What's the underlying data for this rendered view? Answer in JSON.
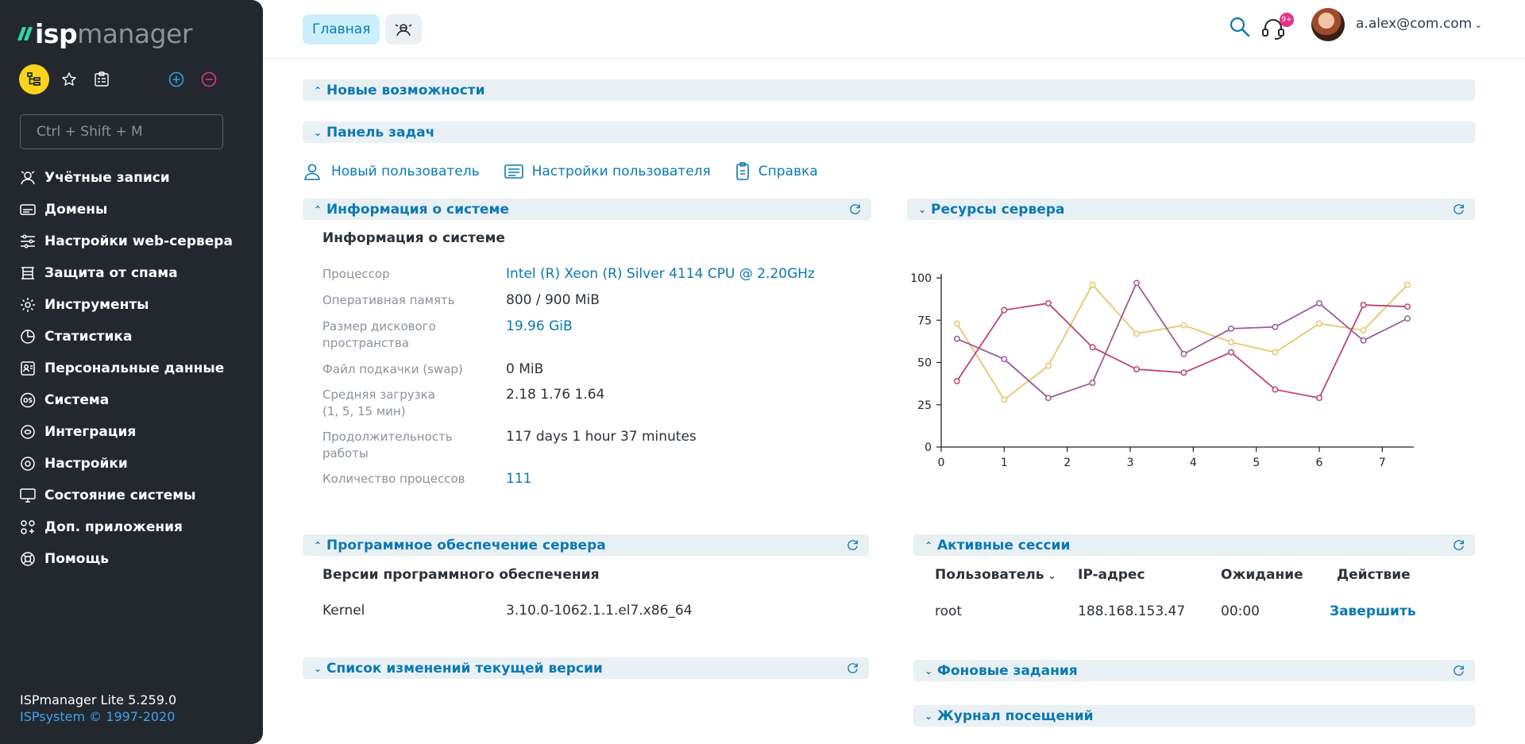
{
  "sidebar": {
    "logo": {
      "part1": "isp",
      "part2": "manager"
    },
    "search_placeholder": "Ctrl + Shift + M",
    "items": [
      {
        "label": "Учётные записи",
        "icon": "accounts-icon"
      },
      {
        "label": "Домены",
        "icon": "domains-icon"
      },
      {
        "label": "Настройки web-сервера",
        "icon": "sliders-icon"
      },
      {
        "label": "Защита от спама",
        "icon": "spam-shield-icon"
      },
      {
        "label": "Инструменты",
        "icon": "gear-icon"
      },
      {
        "label": "Статистика",
        "icon": "pie-chart-icon"
      },
      {
        "label": "Персональные данные",
        "icon": "personal-data-icon"
      },
      {
        "label": "Система",
        "icon": "os-icon"
      },
      {
        "label": "Интеграция",
        "icon": "integration-icon"
      },
      {
        "label": "Настройки",
        "icon": "settings-icon"
      },
      {
        "label": "Состояние системы",
        "icon": "monitor-icon"
      },
      {
        "label": "Доп. приложения",
        "icon": "apps-icon"
      },
      {
        "label": "Помощь",
        "icon": "lifebuoy-icon"
      }
    ],
    "footer": {
      "version": "ISPmanager Lite 5.259.0",
      "copyright": "ISPsystem © 1997-2020"
    }
  },
  "topbar": {
    "tab_main": "Главная",
    "notification_count": "9+",
    "user": "a.alex@com.com"
  },
  "sections": {
    "new_features": "Новые возможности",
    "taskbar": "Панель задач",
    "system_info": "Информация о системе",
    "server_resources": "Ресурсы сервера",
    "server_software": "Программное обеспечение сервера",
    "active_sessions": "Активные сессии",
    "changelog": "Список изменений текущей версии",
    "background_tasks": "Фоновые задания",
    "visit_log": "Журнал посещений"
  },
  "tasks": [
    {
      "label": "Новый пользователь",
      "icon": "new-user-icon"
    },
    {
      "label": "Настройки пользователя",
      "icon": "user-settings-icon"
    },
    {
      "label": "Справка",
      "icon": "help-doc-icon"
    }
  ],
  "system_info": {
    "title": "Информация о системе",
    "rows": [
      {
        "k1": "Процессор",
        "k2": "",
        "v": "Intel (R) Xeon (R) Silver 4114 CPU @ 2.20GHz",
        "link": true
      },
      {
        "k1": "Оперативная память",
        "k2": "",
        "v": "800 / 900 MiB",
        "link": false
      },
      {
        "k1": "Размер дискового",
        "k2": "пространства",
        "v": "19.96 GiB",
        "link": true
      },
      {
        "k1": "Файл подкачки (swap)",
        "k2": "",
        "v": "0 MiB",
        "link": false
      },
      {
        "k1": "Средняя загрузка",
        "k2": "(1, 5, 15 мин)",
        "v": "2.18 1.76 1.64",
        "link": false
      },
      {
        "k1": "Продолжительность",
        "k2": "работы",
        "v": "117 days 1 hour 37 minutes",
        "link": false
      },
      {
        "k1": "Количество процессов",
        "k2": "",
        "v": "111",
        "link": true
      }
    ]
  },
  "software": {
    "title": "Версии программного обеспечения",
    "rows": [
      {
        "name": "Kernel",
        "version": "3.10.0-1062.1.1.el7.x86_64"
      }
    ]
  },
  "sessions": {
    "headers": {
      "user": "Пользователь",
      "ip": "IP-адрес",
      "wait": "Ожидание",
      "action": "Действие"
    },
    "rows": [
      {
        "user": "root",
        "ip": "188.168.153.47",
        "wait": "00:00",
        "action": "Завершить"
      }
    ]
  },
  "chart_data": {
    "type": "line",
    "xlim": [
      0,
      7.5
    ],
    "ylim": [
      0,
      100
    ],
    "x_ticks": [
      "0",
      "1",
      "2",
      "3",
      "4",
      "5",
      "6",
      "7"
    ],
    "y_ticks": [
      "0",
      "25",
      "50",
      "75",
      "100"
    ],
    "x": [
      0.25,
      1,
      1.7,
      2.4,
      3.1,
      3.85,
      4.6,
      5.3,
      6,
      6.7,
      7.4
    ],
    "series": [
      {
        "color": "#e8c56a",
        "values": [
          73,
          28,
          48,
          96,
          67,
          72,
          62,
          56,
          73,
          69,
          96
        ]
      },
      {
        "color": "#c0436e",
        "values": [
          39,
          81,
          85,
          59,
          46,
          44,
          56,
          34,
          29,
          84,
          83
        ]
      },
      {
        "color": "#9a5b9a",
        "values": [
          64,
          52,
          29,
          38,
          97,
          55,
          70,
          71,
          85,
          63,
          76
        ]
      }
    ]
  }
}
